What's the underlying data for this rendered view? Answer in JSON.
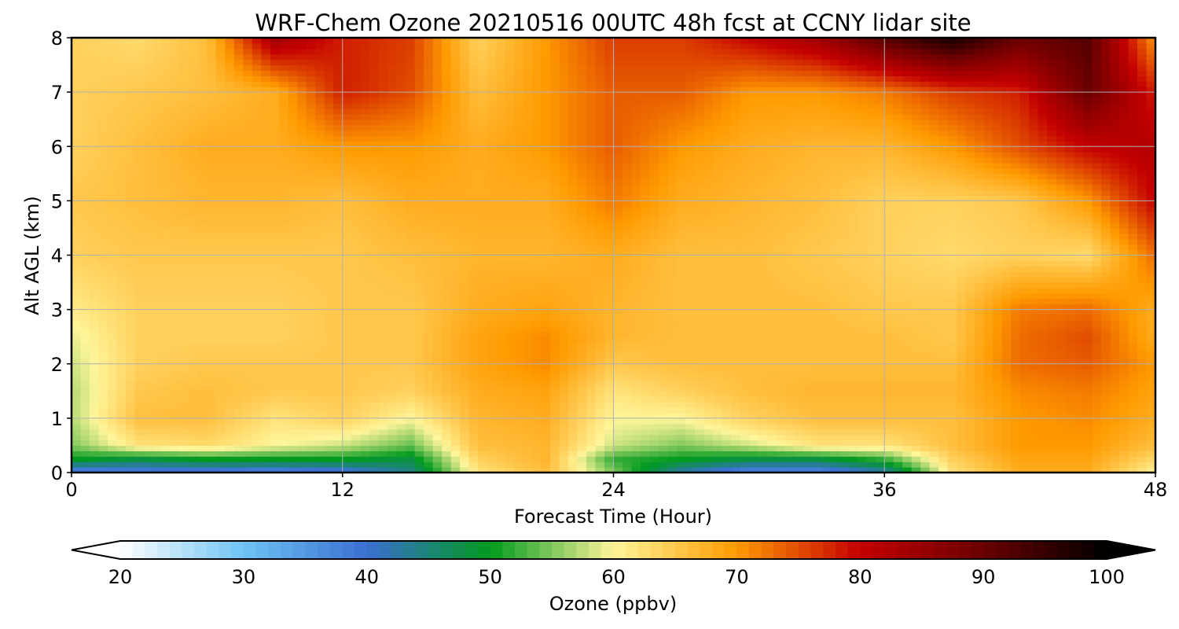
{
  "chart_data": {
    "type": "heatmap",
    "title": "WRF-Chem Ozone  20210516 00UTC 48h fcst at CCNY lidar site",
    "xlabel": "Forecast Time (Hour)",
    "ylabel": "Alt AGL (km)",
    "xlim": [
      0,
      48
    ],
    "ylim": [
      0,
      8
    ],
    "xticks": [
      "0",
      "12",
      "24",
      "36",
      "48"
    ],
    "yticks": [
      "0",
      "1",
      "2",
      "3",
      "4",
      "5",
      "6",
      "7",
      "8"
    ],
    "grid": true,
    "colorbar": {
      "label": "Ozone  (ppbv)",
      "range": [
        20,
        100
      ],
      "ticks": [
        "20",
        "30",
        "40",
        "50",
        "60",
        "70",
        "80",
        "90",
        "100"
      ],
      "extend": "both",
      "stops": [
        {
          "value": 20,
          "color": "#ffffff"
        },
        {
          "value": 30,
          "color": "#6ec3f4"
        },
        {
          "value": 40,
          "color": "#3a6fd1"
        },
        {
          "value": 50,
          "color": "#009a1e"
        },
        {
          "value": 60,
          "color": "#fff59a"
        },
        {
          "value": 70,
          "color": "#ff9a00"
        },
        {
          "value": 80,
          "color": "#c40000"
        },
        {
          "value": 90,
          "color": "#6a0000"
        },
        {
          "value": 100,
          "color": "#000000"
        }
      ]
    },
    "x": [
      0,
      3,
      6,
      9,
      12,
      15,
      18,
      21,
      24,
      27,
      30,
      33,
      36,
      39,
      42,
      45,
      48
    ],
    "y": [
      0,
      0.25,
      0.5,
      1,
      1.5,
      2,
      2.5,
      3,
      4,
      5,
      6,
      7,
      8
    ],
    "z": [
      [
        36,
        37,
        37,
        36,
        38,
        44,
        62,
        66,
        55,
        42,
        36,
        36,
        42,
        62,
        68,
        68,
        60
      ],
      [
        50,
        48,
        50,
        50,
        50,
        48,
        64,
        67,
        52,
        50,
        48,
        48,
        52,
        64,
        69,
        69,
        63
      ],
      [
        55,
        62,
        63,
        60,
        58,
        54,
        66,
        67,
        58,
        55,
        58,
        62,
        62,
        66,
        70,
        70,
        66
      ],
      [
        57,
        66,
        66,
        62,
        64,
        60,
        67,
        68,
        60,
        60,
        64,
        66,
        66,
        66,
        70,
        71,
        68
      ],
      [
        57,
        65,
        66,
        65,
        65,
        64,
        68,
        69,
        62,
        64,
        66,
        67,
        67,
        67,
        71,
        72,
        69
      ],
      [
        58,
        64,
        65,
        65,
        65,
        65,
        69,
        71,
        65,
        66,
        66,
        66,
        66,
        66,
        73,
        74,
        70
      ],
      [
        59,
        64,
        64,
        64,
        65,
        65,
        69,
        71,
        67,
        66,
        66,
        66,
        66,
        65,
        73,
        75,
        68
      ],
      [
        61,
        64,
        64,
        64,
        65,
        65,
        68,
        69,
        67,
        66,
        66,
        66,
        65,
        65,
        72,
        73,
        68
      ],
      [
        64,
        65,
        65,
        65,
        65,
        66,
        67,
        67,
        68,
        66,
        66,
        65,
        64,
        63,
        64,
        63,
        73
      ],
      [
        65,
        66,
        67,
        67,
        66,
        68,
        68,
        68,
        72,
        68,
        67,
        66,
        64,
        64,
        65,
        70,
        80
      ],
      [
        64,
        66,
        68,
        68,
        70,
        70,
        68,
        70,
        74,
        70,
        68,
        67,
        67,
        70,
        75,
        80,
        82
      ],
      [
        64,
        65,
        66,
        68,
        78,
        75,
        66,
        70,
        74,
        74,
        70,
        70,
        72,
        76,
        78,
        90,
        78
      ],
      [
        64,
        63,
        66,
        84,
        78,
        76,
        64,
        70,
        76,
        76,
        80,
        84,
        92,
        98,
        90,
        92,
        70
      ]
    ]
  }
}
